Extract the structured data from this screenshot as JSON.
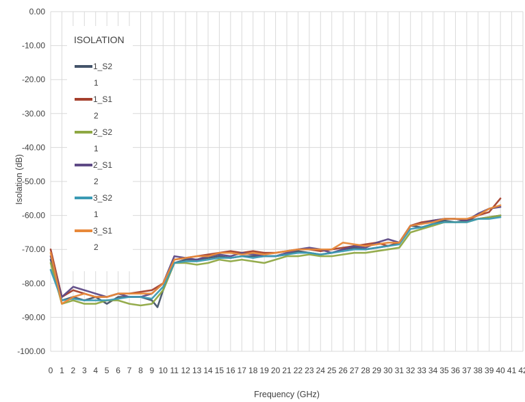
{
  "chart_data": {
    "type": "line",
    "title": "",
    "xlabel": "Frequency (GHz)",
    "ylabel": "Isolation (dB)",
    "xlim": [
      0,
      42
    ],
    "ylim": [
      -100,
      0
    ],
    "x_ticks": [
      "0",
      "1",
      "2",
      "3",
      "4",
      "5",
      "6",
      "7",
      "8",
      "9",
      "10",
      "11",
      "12",
      "13",
      "14",
      "15",
      "16",
      "17",
      "18",
      "19",
      "20",
      "21",
      "22",
      "23",
      "24",
      "25",
      "26",
      "27",
      "28",
      "29",
      "30",
      "31",
      "32",
      "33",
      "34",
      "35",
      "36",
      "37",
      "38",
      "39",
      "40",
      "41",
      "42"
    ],
    "y_ticks": [
      "0.00",
      "-10.00",
      "-20.00",
      "-30.00",
      "-40.00",
      "-50.00",
      "-60.00",
      "-70.00",
      "-80.00",
      "-90.00",
      "-100.00"
    ],
    "grid": true,
    "legend": {
      "title": "ISOLATION",
      "placement": "top-left",
      "entries": [
        {
          "line1": "1_S2",
          "line2": "1"
        },
        {
          "line1": "1_S1",
          "line2": "2"
        },
        {
          "line1": "2_S2",
          "line2": "1"
        },
        {
          "line1": "2_S1",
          "line2": "2"
        },
        {
          "line1": "3_S2",
          "line2": "1"
        },
        {
          "line1": "3_S1",
          "line2": "2"
        }
      ]
    },
    "series": [
      {
        "name": "1_S2 1",
        "color": "#44546A",
        "x": [
          0,
          1,
          2,
          3,
          4,
          5,
          6,
          7,
          8,
          9,
          9.5,
          10,
          11,
          12,
          13,
          14,
          15,
          16,
          17,
          18,
          19,
          20,
          21,
          22,
          23,
          24,
          25,
          26,
          27,
          28,
          29,
          30,
          31,
          32,
          33,
          34,
          35,
          36,
          37,
          38,
          39,
          40
        ],
        "y": [
          -73,
          -85,
          -84,
          -85,
          -84,
          -86,
          -84,
          -84,
          -84,
          -85,
          -87,
          -82,
          -74,
          -73,
          -73,
          -72.5,
          -72,
          -72.5,
          -72,
          -72,
          -72,
          -72,
          -71.5,
          -70.5,
          -71,
          -71.5,
          -71,
          -70,
          -69.5,
          -70,
          -69.5,
          -69,
          -68,
          -63,
          -63.5,
          -62.5,
          -61.5,
          -62,
          -61.5,
          -61,
          -60.5,
          -60
        ]
      },
      {
        "name": "1_S1 2",
        "color": "#A5402D",
        "x": [
          0,
          1,
          2,
          3,
          4,
          5,
          6,
          7,
          8,
          9,
          10,
          11,
          12,
          13,
          14,
          15,
          16,
          17,
          18,
          19,
          20,
          21,
          22,
          23,
          24,
          25,
          26,
          27,
          28,
          29,
          30,
          31,
          32,
          33,
          34,
          35,
          36,
          37,
          38,
          39,
          40
        ],
        "y": [
          -70,
          -84,
          -82,
          -83,
          -84,
          -84,
          -83,
          -83,
          -82.5,
          -82,
          -80,
          -73,
          -72.5,
          -72,
          -71.5,
          -71,
          -70.5,
          -71,
          -70.5,
          -71,
          -71,
          -70.5,
          -70,
          -70,
          -70.5,
          -70,
          -69.5,
          -69,
          -68.5,
          -68,
          -69,
          -68,
          -63,
          -62,
          -61.5,
          -61,
          -61,
          -61.5,
          -60,
          -59,
          -55
        ]
      },
      {
        "name": "2_S2 1",
        "color": "#8FA843",
        "x": [
          0,
          1,
          2,
          3,
          4,
          5,
          6,
          7,
          8,
          9,
          10,
          11,
          12,
          13,
          14,
          15,
          16,
          17,
          18,
          19,
          20,
          21,
          22,
          23,
          24,
          25,
          26,
          27,
          28,
          29,
          30,
          31,
          32,
          33,
          34,
          35,
          36,
          37,
          38,
          39,
          40
        ],
        "y": [
          -74,
          -86,
          -85,
          -86,
          -86,
          -85,
          -85,
          -86,
          -86.5,
          -86,
          -82,
          -74,
          -74,
          -74.5,
          -74,
          -73,
          -73.5,
          -73,
          -73.5,
          -74,
          -73,
          -72,
          -72,
          -71.5,
          -72,
          -72,
          -71.5,
          -71,
          -71,
          -70.5,
          -70,
          -69.5,
          -65,
          -64,
          -63,
          -62,
          -62,
          -62,
          -61,
          -60.5,
          -60
        ]
      },
      {
        "name": "2_S1 2",
        "color": "#5E4A86",
        "x": [
          0,
          1,
          2,
          3,
          4,
          5,
          6,
          7,
          8,
          9,
          10,
          11,
          12,
          13,
          14,
          15,
          16,
          17,
          18,
          19,
          20,
          21,
          22,
          23,
          24,
          25,
          26,
          27,
          28,
          29,
          30,
          31,
          32,
          33,
          34,
          35,
          36,
          37,
          38,
          39,
          40
        ],
        "y": [
          -72,
          -84,
          -81,
          -82,
          -83,
          -84,
          -83,
          -84,
          -84,
          -83,
          -80,
          -72,
          -72.5,
          -73,
          -72,
          -71.5,
          -72,
          -71,
          -71.5,
          -72,
          -72,
          -71,
          -70,
          -69.5,
          -70,
          -71,
          -70,
          -69,
          -69.5,
          -68,
          -67,
          -68,
          -63,
          -62.5,
          -61.5,
          -61,
          -61,
          -61.5,
          -59.5,
          -58,
          -57.5
        ]
      },
      {
        "name": "3_S2 1",
        "color": "#3B9AB4",
        "x": [
          0,
          1,
          2,
          3,
          4,
          5,
          6,
          7,
          8,
          9,
          10,
          11,
          12,
          13,
          14,
          15,
          16,
          17,
          18,
          19,
          20,
          21,
          22,
          23,
          24,
          25,
          26,
          27,
          28,
          29,
          30,
          31,
          32,
          33,
          34,
          35,
          36,
          37,
          38,
          39,
          40
        ],
        "y": [
          -76,
          -85,
          -84.5,
          -85,
          -85,
          -85,
          -84.5,
          -84,
          -84,
          -84.5,
          -81,
          -74,
          -73.5,
          -73.5,
          -73,
          -72.5,
          -72.5,
          -72,
          -72.5,
          -72,
          -72,
          -71.5,
          -71,
          -71,
          -71.5,
          -71,
          -70.5,
          -70,
          -70,
          -69.5,
          -69,
          -68.5,
          -64,
          -63.5,
          -62.5,
          -62,
          -62,
          -62,
          -61,
          -61,
          -60.5
        ]
      },
      {
        "name": "3_S1 2",
        "color": "#E8893A",
        "x": [
          0,
          1,
          2,
          3,
          4,
          5,
          6,
          7,
          8,
          9,
          10,
          11,
          12,
          13,
          14,
          15,
          16,
          17,
          18,
          19,
          20,
          21,
          22,
          23,
          24,
          25,
          26,
          27,
          28,
          29,
          30,
          31,
          32,
          33,
          34,
          35,
          36,
          37,
          38,
          39,
          40
        ],
        "y": [
          -71,
          -86,
          -84,
          -83,
          -84,
          -84,
          -83,
          -83,
          -83,
          -83,
          -80,
          -73,
          -72.5,
          -72,
          -72,
          -71,
          -71,
          -71.5,
          -71,
          -71.5,
          -71,
          -70.5,
          -70,
          -70,
          -70,
          -70,
          -68,
          -68.5,
          -69,
          -68.5,
          -68,
          -68,
          -63,
          -62.5,
          -62,
          -61,
          -61,
          -61,
          -60,
          -58,
          -57
        ]
      }
    ]
  }
}
